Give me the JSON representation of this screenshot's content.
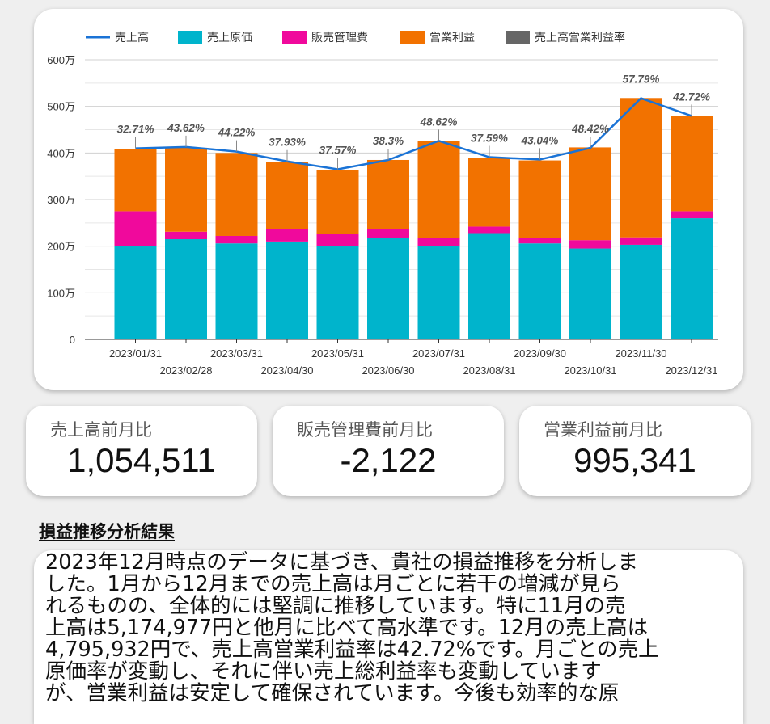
{
  "chart_data": {
    "type": "bar",
    "stacked": true,
    "categories": [
      "2023/01/31",
      "2023/02/28",
      "2023/03/31",
      "2023/04/30",
      "2023/05/31",
      "2023/06/30",
      "2023/07/31",
      "2023/08/31",
      "2023/09/30",
      "2023/10/31",
      "2023/11/30",
      "2023/12/31"
    ],
    "series": [
      {
        "name": "売上原価",
        "values": [
          2000000,
          2150000,
          2060000,
          2100000,
          2000000,
          2170000,
          2000000,
          2280000,
          2060000,
          1950000,
          2030000,
          2600000
        ],
        "color": "#00b4cc"
      },
      {
        "name": "販売管理費",
        "values": [
          750000,
          160000,
          160000,
          260000,
          270000,
          200000,
          180000,
          140000,
          120000,
          180000,
          160000,
          150000
        ],
        "color": "#f0099c"
      },
      {
        "name": "営業利益",
        "values": [
          1340000,
          1800000,
          1780000,
          1440000,
          1370000,
          1480000,
          2080000,
          1470000,
          1660000,
          1990000,
          2990000,
          2050000
        ],
        "color": "#f27200"
      }
    ],
    "line_series": {
      "name": "売上高",
      "values": [
        4100000,
        4130000,
        4030000,
        3820000,
        3650000,
        3850000,
        4260000,
        3910000,
        3860000,
        4110000,
        5174977,
        4795932
      ],
      "color": "#1a73d6"
    },
    "ratio_series": {
      "name": "売上高営業利益率",
      "labels": [
        "32.71%",
        "43.62%",
        "44.22%",
        "37.93%",
        "37.57%",
        "38.3%",
        "48.62%",
        "37.59%",
        "43.04%",
        "48.42%",
        "57.79%",
        "42.72%"
      ],
      "color": "#666666"
    },
    "ylim": [
      0,
      6000000
    ],
    "yticks": [
      "0",
      "100万",
      "200万",
      "300万",
      "400万",
      "500万",
      "600万"
    ],
    "grid": true,
    "legend": "top-left"
  },
  "kpis": [
    {
      "label": "売上高前月比",
      "value": "1,054,511"
    },
    {
      "label": "販売管理費前月比",
      "value": "-2,122"
    },
    {
      "label": "営業利益前月比",
      "value": "995,341"
    }
  ],
  "analysis": {
    "title": "損益推移分析結果",
    "lines": [
      "2023年12月時点のデータに基づき、貴社の損益推移を分析しま",
      "した。1月から12月までの売上高は月ごとに若干の増減が見ら",
      "れるものの、全体的には堅調に推移しています。特に11月の売",
      "上高は5,174,977円と他月に比べて高水準です。12月の売上高は",
      "4,795,932円で、売上高営業利益率は42.72%です。月ごとの売上",
      "原価率が変動し、それに伴い売上総利益率も変動しています",
      "が、営業利益は安定して確保されています。今後も効率的な原"
    ]
  }
}
